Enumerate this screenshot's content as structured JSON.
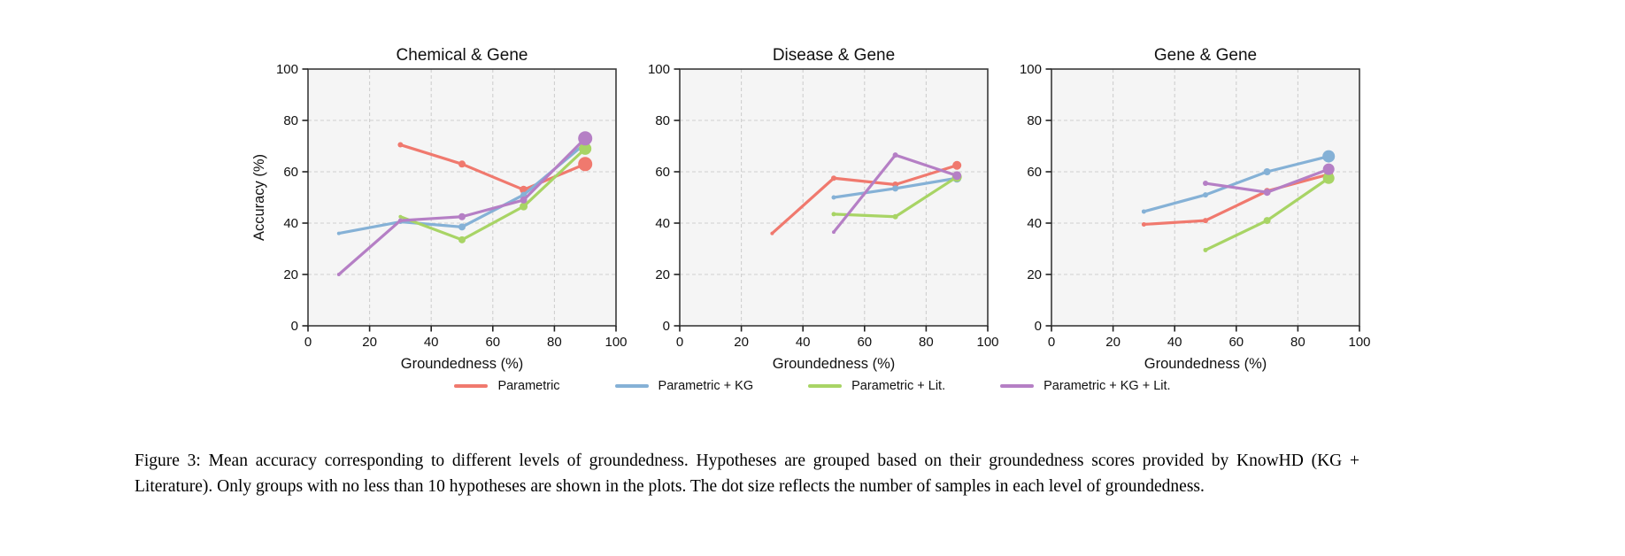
{
  "figure": {
    "caption": "Figure 3: Mean accuracy corresponding to different levels of groundedness. Hypotheses are grouped based on their groundedness scores provided by KnowHD (KG + Literature). Only groups with no less than 10 hypotheses are shown in the plots. The dot size reflects the number of samples in each level of groundedness."
  },
  "legend": {
    "items": [
      {
        "label": "Parametric",
        "color": "#f0796e"
      },
      {
        "label": "Parametric + KG",
        "color": "#85b1d6"
      },
      {
        "label": "Parametric + Lit.",
        "color": "#a8d465"
      },
      {
        "label": "Parametric + KG + Lit.",
        "color": "#b57fc5"
      }
    ]
  },
  "style": {
    "plot_bg": "#f5f5f5",
    "grid_color": "#cfcfcf",
    "frame_color": "#3a3a3a",
    "tick_color": "#222222",
    "text_color": "#111111"
  },
  "chart_data": [
    {
      "type": "line",
      "title": "Chemical & Gene",
      "xlabel": "Groundedness (%)",
      "ylabel": "Accuracy (%)",
      "xlim": [
        0,
        100
      ],
      "ylim": [
        0,
        100
      ],
      "xticks": [
        0,
        20,
        40,
        60,
        80,
        100
      ],
      "yticks": [
        0,
        20,
        40,
        60,
        80,
        100
      ],
      "grid": true,
      "legend_position": "below-figure",
      "series": [
        {
          "name": "Parametric",
          "color": "#f0796e",
          "points": [
            [
              30,
              70.5,
              3
            ],
            [
              50,
              63,
              4
            ],
            [
              70,
              53,
              4.5
            ],
            [
              90,
              63,
              8
            ]
          ]
        },
        {
          "name": "Parametric + KG",
          "color": "#85b1d6",
          "points": [
            [
              10,
              36,
              2
            ],
            [
              30,
              40.5,
              2.5
            ],
            [
              50,
              38.5,
              4
            ],
            [
              70,
              51,
              3.5
            ],
            [
              90,
              71,
              4.5
            ]
          ]
        },
        {
          "name": "Parametric + Lit.",
          "color": "#a8d465",
          "points": [
            [
              30,
              42.5,
              2
            ],
            [
              50,
              33.5,
              4
            ],
            [
              70,
              46.5,
              4.5
            ],
            [
              90,
              69,
              7
            ]
          ]
        },
        {
          "name": "Parametric + KG + Lit.",
          "color": "#b57fc5",
          "points": [
            [
              10,
              20,
              2
            ],
            [
              30,
              41,
              2.5
            ],
            [
              50,
              42.5,
              4
            ],
            [
              70,
              49,
              4
            ],
            [
              90,
              73,
              8
            ]
          ]
        }
      ]
    },
    {
      "type": "line",
      "title": "Disease & Gene",
      "xlabel": "Groundedness (%)",
      "ylabel": "",
      "xlim": [
        0,
        100
      ],
      "ylim": [
        0,
        100
      ],
      "xticks": [
        0,
        20,
        40,
        60,
        80,
        100
      ],
      "yticks": [
        0,
        20,
        40,
        60,
        80,
        100
      ],
      "grid": true,
      "legend_position": "below-figure",
      "series": [
        {
          "name": "Parametric",
          "color": "#f0796e",
          "points": [
            [
              30,
              36,
              2
            ],
            [
              50,
              57.5,
              3
            ],
            [
              70,
              55,
              3.5
            ],
            [
              90,
              62.5,
              5
            ]
          ]
        },
        {
          "name": "Parametric + KG",
          "color": "#85b1d6",
          "points": [
            [
              50,
              50,
              2.5
            ],
            [
              70,
              53.5,
              3.5
            ],
            [
              90,
              57.5,
              5
            ]
          ]
        },
        {
          "name": "Parametric + Lit.",
          "color": "#a8d465",
          "points": [
            [
              50,
              43.5,
              2.5
            ],
            [
              70,
              42.5,
              3
            ],
            [
              90,
              58,
              5.5
            ]
          ]
        },
        {
          "name": "Parametric + KG + Lit.",
          "color": "#b57fc5",
          "points": [
            [
              50,
              36.5,
              2
            ],
            [
              70,
              66.5,
              3
            ],
            [
              90,
              58.5,
              5
            ]
          ]
        }
      ]
    },
    {
      "type": "line",
      "title": "Gene & Gene",
      "xlabel": "Groundedness (%)",
      "ylabel": "",
      "xlim": [
        0,
        100
      ],
      "ylim": [
        0,
        100
      ],
      "xticks": [
        0,
        20,
        40,
        60,
        80,
        100
      ],
      "yticks": [
        0,
        20,
        40,
        60,
        80,
        100
      ],
      "grid": true,
      "legend_position": "below-figure",
      "series": [
        {
          "name": "Parametric",
          "color": "#f0796e",
          "points": [
            [
              30,
              39.5,
              2.5
            ],
            [
              50,
              41,
              3
            ],
            [
              70,
              52.5,
              3.5
            ],
            [
              90,
              59,
              5
            ]
          ]
        },
        {
          "name": "Parametric + KG",
          "color": "#85b1d6",
          "points": [
            [
              30,
              44.5,
              2.5
            ],
            [
              50,
              51,
              3
            ],
            [
              70,
              60,
              4
            ],
            [
              90,
              66,
              7
            ]
          ]
        },
        {
          "name": "Parametric + Lit.",
          "color": "#a8d465",
          "points": [
            [
              50,
              29.5,
              2.5
            ],
            [
              70,
              41,
              4
            ],
            [
              90,
              57.5,
              6.5
            ]
          ]
        },
        {
          "name": "Parametric + KG + Lit.",
          "color": "#b57fc5",
          "points": [
            [
              50,
              55.5,
              3
            ],
            [
              70,
              52,
              4
            ],
            [
              90,
              61,
              6.5
            ]
          ]
        }
      ]
    }
  ]
}
